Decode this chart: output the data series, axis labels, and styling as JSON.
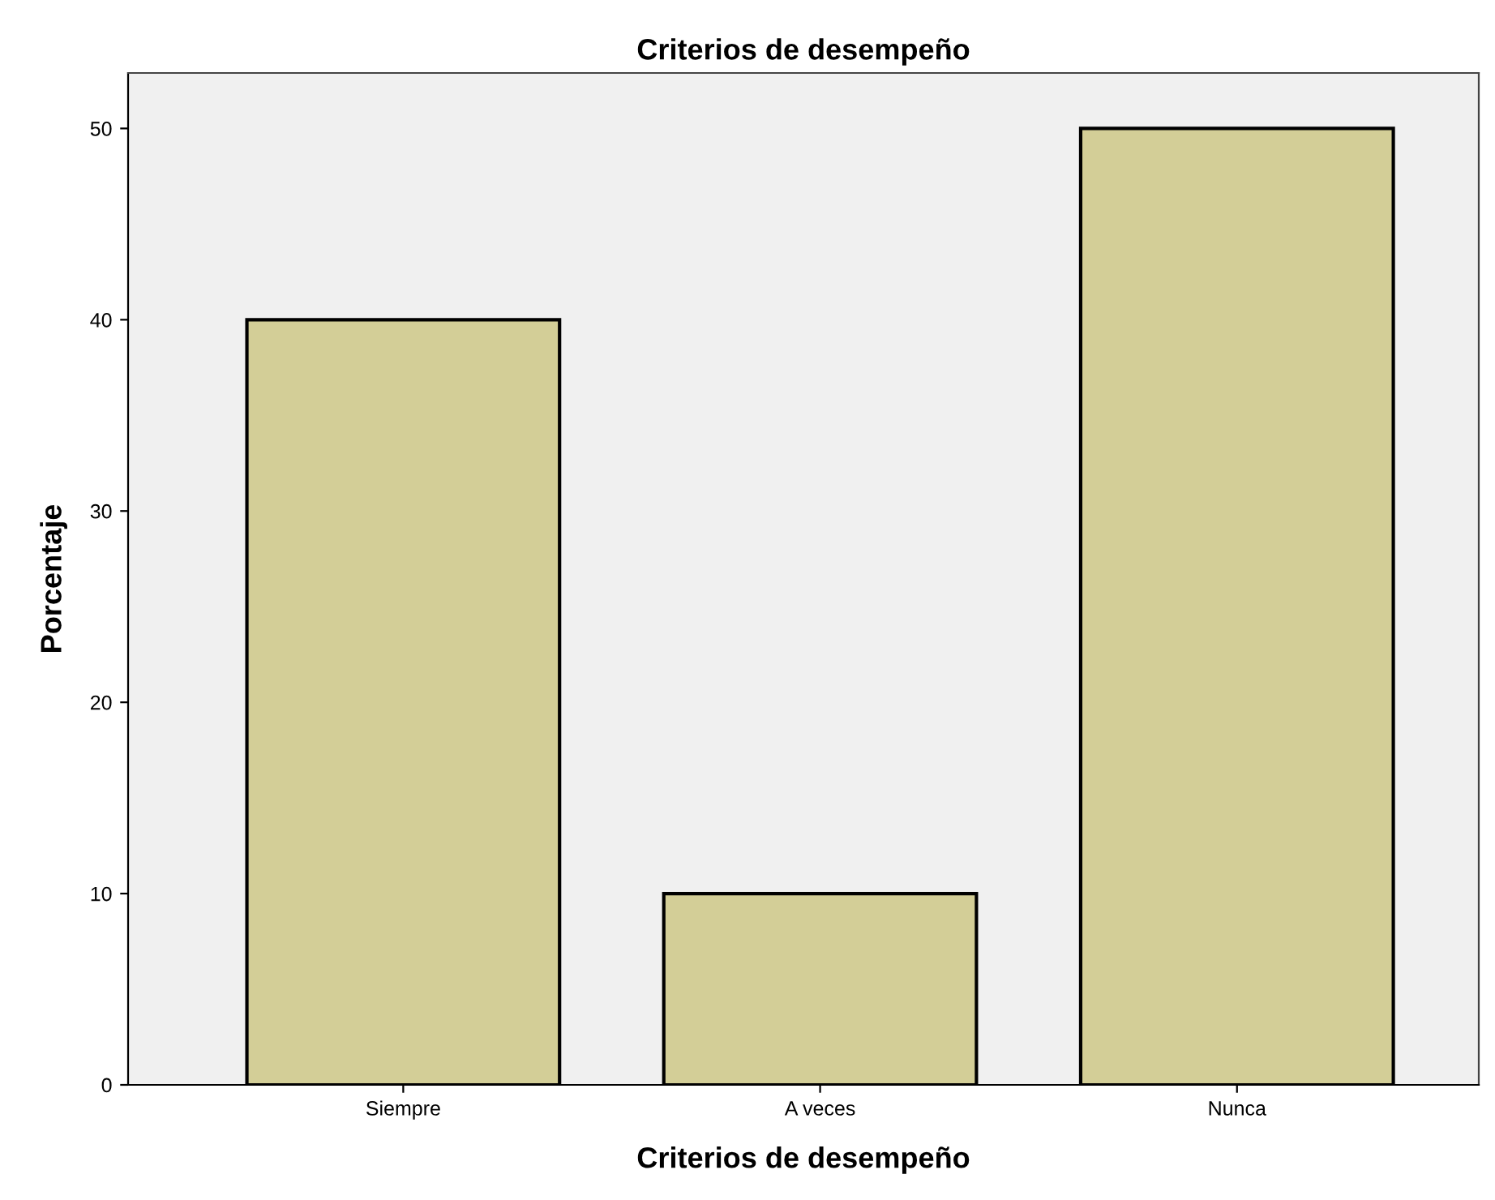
{
  "chart_data": {
    "type": "bar",
    "title": "Criterios de desempeño",
    "xlabel": "Criterios de desempeño",
    "ylabel": "Porcentaje",
    "categories": [
      "Siempre",
      "A veces",
      "Nunca"
    ],
    "values": [
      40,
      10,
      50
    ],
    "color": "#d3ce97",
    "ylim": [
      0,
      52.9
    ],
    "yticks": [
      0,
      10,
      20,
      30,
      40,
      50
    ],
    "grid": false,
    "legend": false
  }
}
